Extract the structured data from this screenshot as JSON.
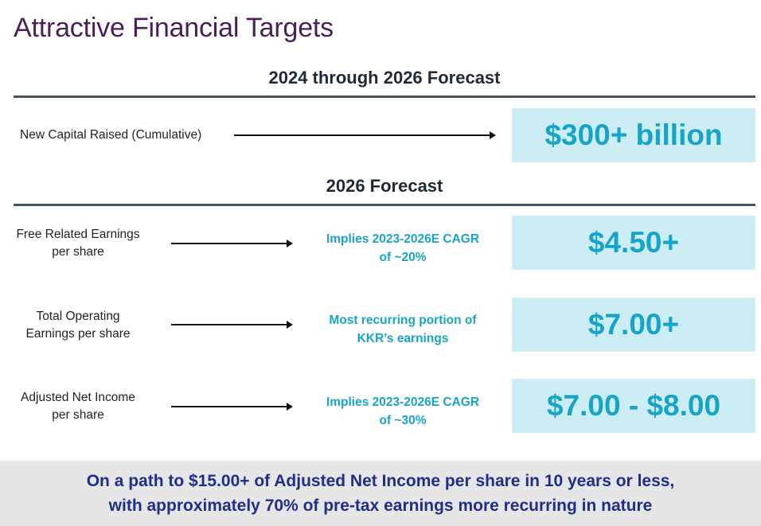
{
  "page": {
    "title": "Attractive Financial Targets"
  },
  "sections": {
    "forecast_2024_2026": {
      "heading": "2024 through 2026 Forecast",
      "rows": [
        {
          "label": "New Capital Raised (Cumulative)",
          "value": "$300+ billion"
        }
      ]
    },
    "forecast_2026": {
      "heading": "2026 Forecast",
      "rows": [
        {
          "label_line1": "Free Related Earnings",
          "label_line2": "per share",
          "note_line1": "Implies 2023-2026E CAGR",
          "note_line2": "of ~20%",
          "value": "$4.50+"
        },
        {
          "label_line1": "Total Operating",
          "label_line2": "Earnings per share",
          "note_line1": "Most recurring portion of",
          "note_line2": "KKR’s earnings",
          "value": "$7.00+"
        },
        {
          "label_line1": "Adjusted Net Income",
          "label_line2": "per share",
          "note_line1": "Implies 2023-2026E CAGR",
          "note_line2": "of ~30%",
          "value": "$7.00 - $8.00"
        }
      ]
    }
  },
  "footer": {
    "line1": "On a path to $15.00+ of Adjusted Net Income per share in 10 years or less,",
    "line2": "with approximately 70% of pre-tax earnings more recurring in nature"
  },
  "colors": {
    "title": "#4b1e5a",
    "accent": "#16a4c8",
    "box_fill": "#cdedf4",
    "footer_text": "#1f2e8c",
    "footer_bg": "#e6e6e6",
    "rule": "#47535c"
  }
}
